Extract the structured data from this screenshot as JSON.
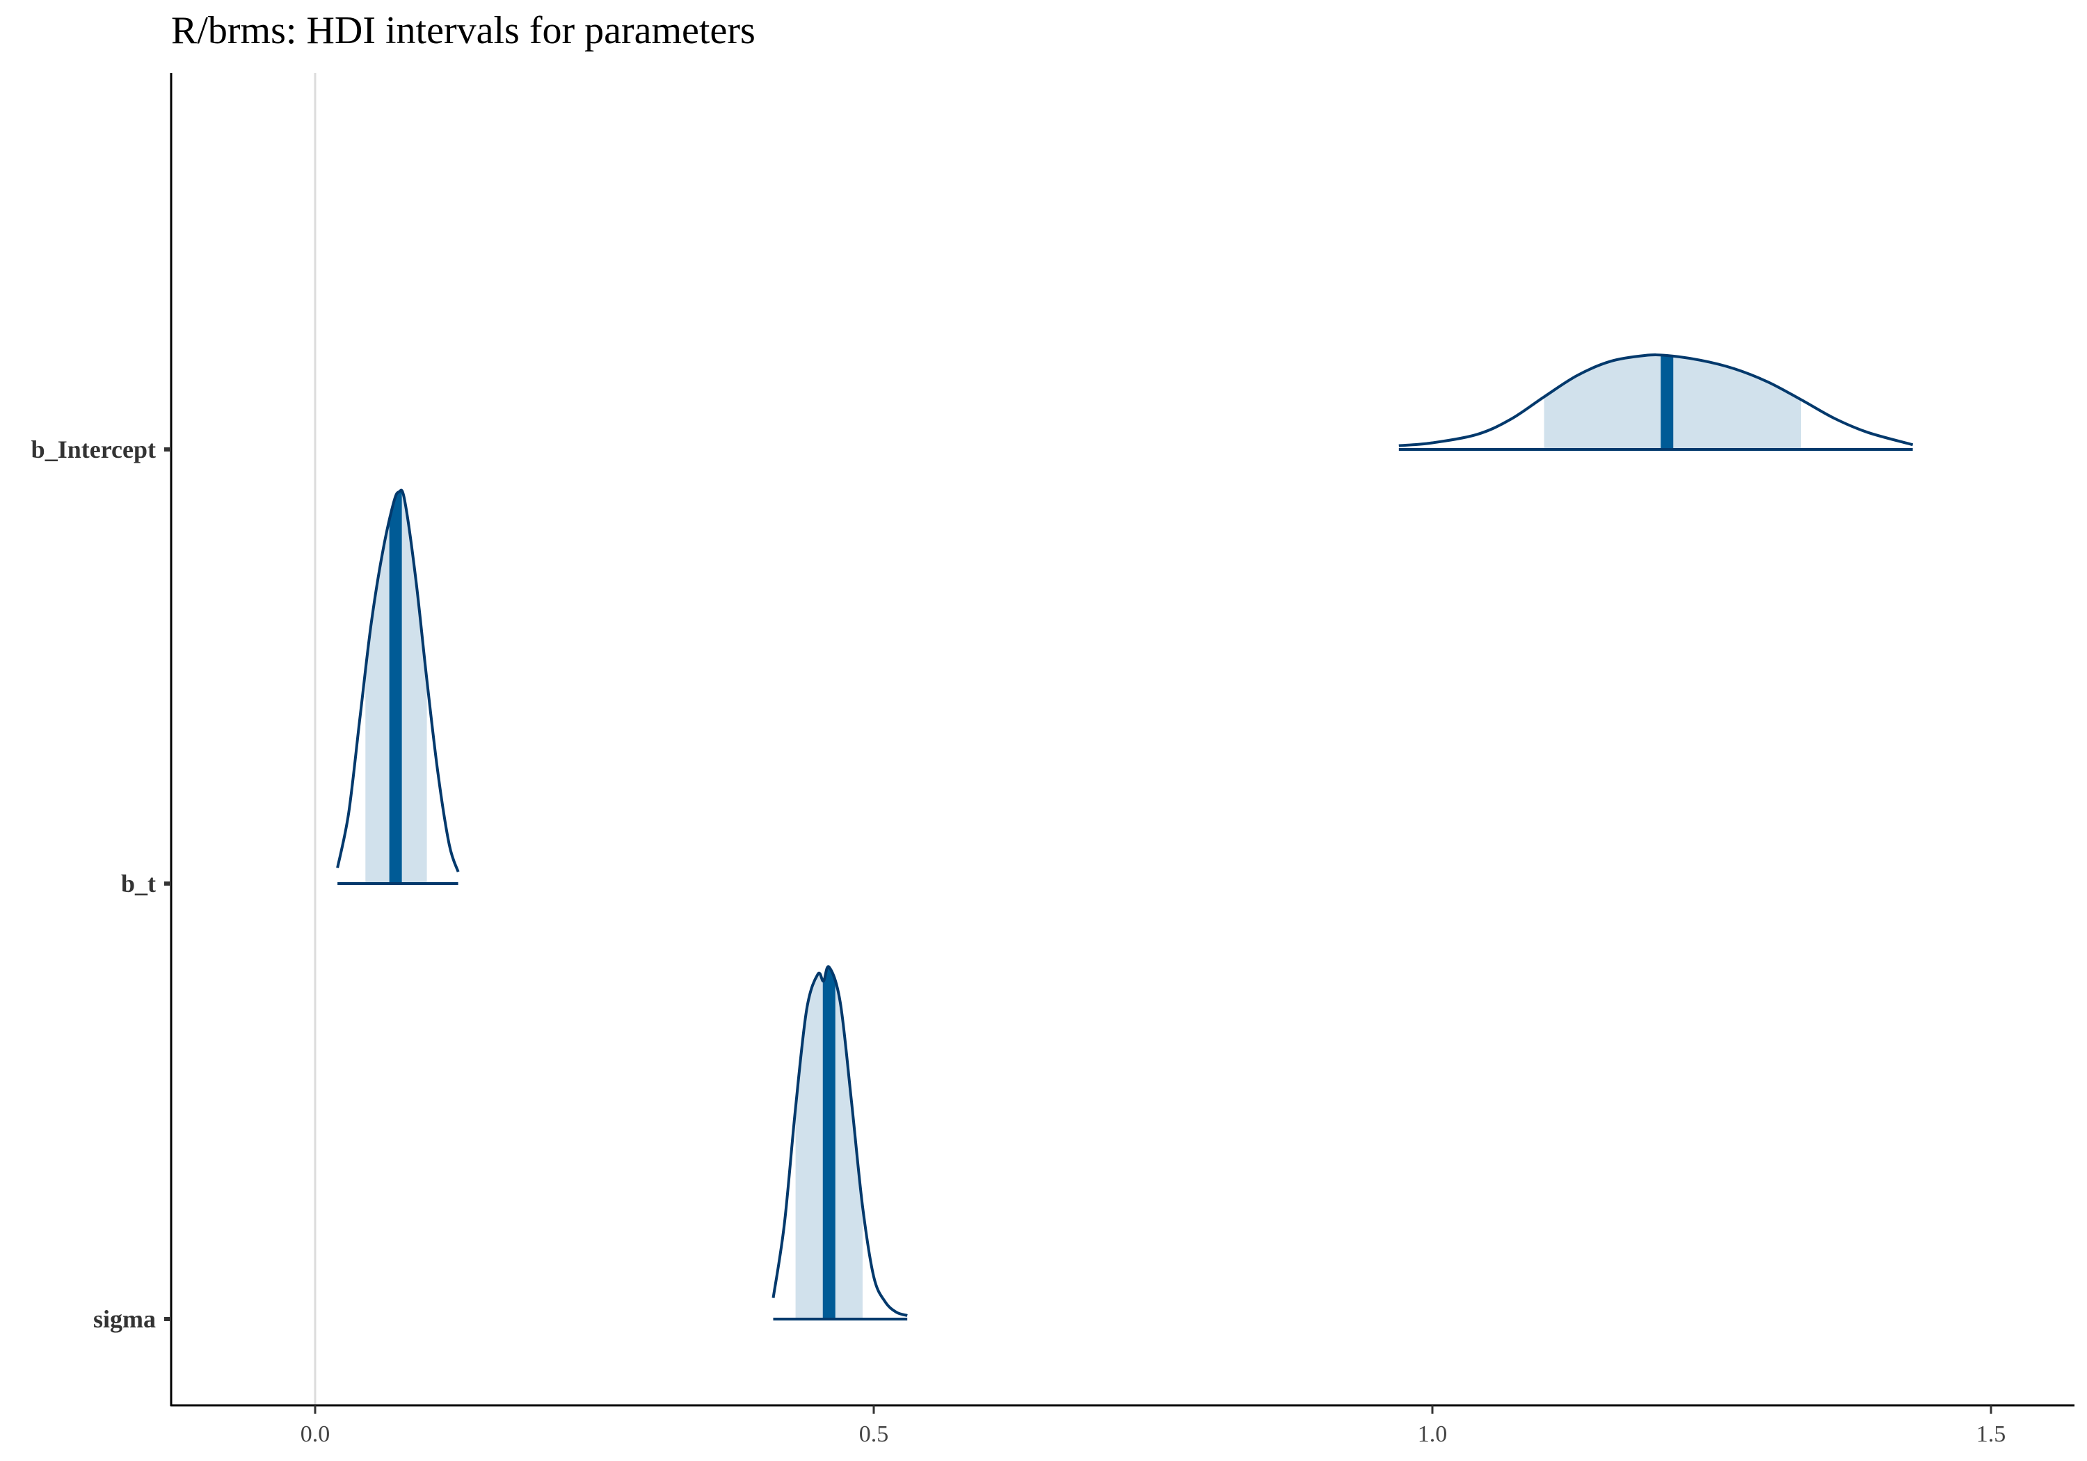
{
  "chart_data": {
    "type": "ridgeline",
    "title": "R/brms: HDI intervals for parameters",
    "xlabel": "",
    "ylabel": "",
    "xlim": [
      -0.13,
      1.58
    ],
    "x_ticks": [
      "0.0",
      "0.5",
      "1.0",
      "1.5"
    ],
    "x_tick_values": [
      0.0,
      0.5,
      1.0,
      1.5
    ],
    "reference_line_x": 0.0,
    "grid": false,
    "colors": {
      "fill": "#d1e1ec",
      "outline": "#03396c",
      "median": "#005b96",
      "reference": "#dcdcdc",
      "axis": "#000000"
    },
    "parameters": [
      {
        "name": "b_Intercept",
        "median": 1.21,
        "hdi": [
          1.1,
          1.33
        ],
        "density_range": [
          0.97,
          1.43
        ],
        "density": [
          [
            0.97,
            0.04
          ],
          [
            1.0,
            0.07
          ],
          [
            1.04,
            0.16
          ],
          [
            1.07,
            0.32
          ],
          [
            1.1,
            0.56
          ],
          [
            1.13,
            0.79
          ],
          [
            1.16,
            0.94
          ],
          [
            1.19,
            1.0
          ],
          [
            1.21,
            1.0
          ],
          [
            1.24,
            0.95
          ],
          [
            1.27,
            0.86
          ],
          [
            1.3,
            0.72
          ],
          [
            1.33,
            0.53
          ],
          [
            1.36,
            0.33
          ],
          [
            1.39,
            0.18
          ],
          [
            1.43,
            0.05
          ]
        ]
      },
      {
        "name": "b_t",
        "median": 0.072,
        "hdi": [
          0.045,
          0.1
        ],
        "density_range": [
          0.02,
          0.128
        ],
        "density": [
          [
            0.02,
            0.04
          ],
          [
            0.03,
            0.18
          ],
          [
            0.04,
            0.42
          ],
          [
            0.05,
            0.66
          ],
          [
            0.06,
            0.84
          ],
          [
            0.07,
            0.97
          ],
          [
            0.075,
            1.0
          ],
          [
            0.08,
            0.98
          ],
          [
            0.09,
            0.78
          ],
          [
            0.1,
            0.52
          ],
          [
            0.11,
            0.28
          ],
          [
            0.12,
            0.1
          ],
          [
            0.128,
            0.03
          ]
        ]
      },
      {
        "name": "sigma",
        "median": 0.46,
        "hdi": [
          0.43,
          0.49
        ],
        "density_range": [
          0.41,
          0.53
        ],
        "density": [
          [
            0.41,
            0.06
          ],
          [
            0.42,
            0.27
          ],
          [
            0.43,
            0.6
          ],
          [
            0.44,
            0.88
          ],
          [
            0.45,
            0.98
          ],
          [
            0.455,
            0.96
          ],
          [
            0.46,
            1.0
          ],
          [
            0.47,
            0.9
          ],
          [
            0.48,
            0.62
          ],
          [
            0.49,
            0.32
          ],
          [
            0.5,
            0.12
          ],
          [
            0.51,
            0.05
          ],
          [
            0.52,
            0.02
          ],
          [
            0.53,
            0.01
          ]
        ]
      }
    ]
  }
}
